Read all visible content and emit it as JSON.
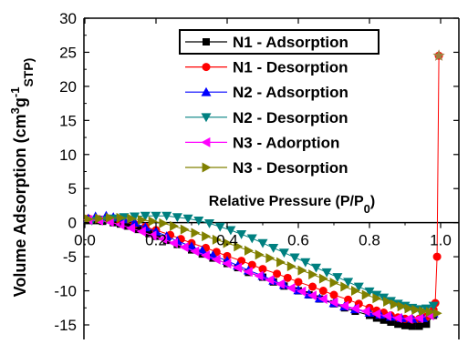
{
  "chart_data": {
    "type": "scatter",
    "xlabel_parts": [
      "Relative Pressure (P/P",
      "0",
      ")"
    ],
    "ylabel_parts": [
      "Volume Adsorption (cm",
      "3",
      "g",
      "-1",
      "STP)"
    ],
    "xlim": [
      0.0,
      1.05
    ],
    "ylim": [
      -17.5,
      30
    ],
    "xticks": [
      0.0,
      0.2,
      0.4,
      0.6,
      0.8,
      1.0
    ],
    "xtick_labels": [
      "0.0",
      "0.2",
      "0.4",
      "0.6",
      "0.8",
      "1.0"
    ],
    "yticks": [
      -15,
      -10,
      -5,
      0,
      5,
      10,
      15,
      20,
      25,
      30
    ],
    "ytick_labels": [
      "-15",
      "-10",
      "-5",
      "0",
      "5",
      "10",
      "15",
      "20",
      "25",
      "30"
    ],
    "legend_position": "top-center",
    "series": [
      {
        "name": "N1 - Adsorption",
        "marker": "square",
        "color": "#000000",
        "x": [
          0.01,
          0.03,
          0.05,
          0.08,
          0.1,
          0.12,
          0.15,
          0.18,
          0.2,
          0.23,
          0.26,
          0.3,
          0.33,
          0.36,
          0.4,
          0.43,
          0.46,
          0.5,
          0.53,
          0.56,
          0.6,
          0.63,
          0.66,
          0.7,
          0.73,
          0.76,
          0.8,
          0.82,
          0.84,
          0.86,
          0.88,
          0.9,
          0.92,
          0.94,
          0.96,
          0.98
        ],
        "y": [
          0.3,
          0.3,
          0.2,
          0.0,
          -0.2,
          -0.5,
          -1.0,
          -1.6,
          -2.0,
          -2.6,
          -3.2,
          -4.0,
          -4.6,
          -5.2,
          -6.0,
          -6.6,
          -7.3,
          -8.0,
          -8.7,
          -9.3,
          -10.0,
          -10.6,
          -11.2,
          -11.9,
          -12.5,
          -13.0,
          -13.6,
          -14.0,
          -14.3,
          -14.6,
          -14.9,
          -15.1,
          -15.2,
          -15.2,
          -14.9,
          -13.6
        ]
      },
      {
        "name": "N1 - Desorption",
        "marker": "circle",
        "color": "#ff0000",
        "x": [
          0.995,
          0.99,
          0.985,
          0.98,
          0.96,
          0.94,
          0.92,
          0.9,
          0.88,
          0.86,
          0.84,
          0.82,
          0.8,
          0.77,
          0.74,
          0.7,
          0.67,
          0.64,
          0.6,
          0.57,
          0.54,
          0.5,
          0.47,
          0.44,
          0.4,
          0.37,
          0.34,
          0.3,
          0.27,
          0.24,
          0.2,
          0.17,
          0.14,
          0.1,
          0.07,
          0.04,
          0.01
        ],
        "y": [
          24.5,
          -5.0,
          -11.8,
          -12.8,
          -13.8,
          -14.1,
          -14.2,
          -14.1,
          -13.9,
          -13.6,
          -13.2,
          -12.9,
          -12.5,
          -11.9,
          -11.3,
          -10.6,
          -10.0,
          -9.4,
          -8.7,
          -8.1,
          -7.5,
          -6.8,
          -6.2,
          -5.6,
          -4.9,
          -4.3,
          -3.7,
          -3.0,
          -2.4,
          -1.8,
          -1.1,
          -0.6,
          -0.2,
          0.2,
          0.4,
          0.5,
          0.6
        ]
      },
      {
        "name": "N2 - Adsorption",
        "marker": "triangle-up",
        "color": "#0000ff",
        "x": [
          0.01,
          0.03,
          0.06,
          0.08,
          0.11,
          0.14,
          0.17,
          0.2,
          0.23,
          0.26,
          0.3,
          0.33,
          0.36,
          0.4,
          0.43,
          0.46,
          0.5,
          0.53,
          0.56,
          0.6,
          0.63,
          0.66,
          0.7,
          0.73,
          0.76,
          0.8,
          0.83,
          0.86,
          0.89,
          0.92,
          0.95,
          0.98
        ],
        "y": [
          0.6,
          0.9,
          1.0,
          0.8,
          0.5,
          0.0,
          -0.7,
          -1.3,
          -2.0,
          -2.7,
          -3.5,
          -4.1,
          -4.8,
          -5.6,
          -6.3,
          -7.0,
          -7.8,
          -8.5,
          -9.1,
          -9.9,
          -10.5,
          -11.1,
          -11.8,
          -12.3,
          -12.7,
          -13.2,
          -13.5,
          -13.8,
          -14.0,
          -14.1,
          -14.0,
          -13.3
        ]
      },
      {
        "name": "N2 - Desorption",
        "marker": "triangle-down",
        "color": "#008080",
        "x": [
          0.98,
          0.96,
          0.94,
          0.92,
          0.9,
          0.88,
          0.86,
          0.84,
          0.82,
          0.8,
          0.77,
          0.74,
          0.71,
          0.68,
          0.65,
          0.62,
          0.59,
          0.56,
          0.53,
          0.5,
          0.47,
          0.44,
          0.41,
          0.38,
          0.35,
          0.32,
          0.29,
          0.26,
          0.23,
          0.2,
          0.17,
          0.14,
          0.11,
          0.08,
          0.05,
          0.02
        ],
        "y": [
          -12.2,
          -12.6,
          -12.7,
          -12.5,
          -12.2,
          -11.9,
          -11.5,
          -11.0,
          -10.6,
          -10.1,
          -9.4,
          -8.7,
          -8.0,
          -7.3,
          -6.6,
          -5.8,
          -5.1,
          -4.4,
          -3.7,
          -3.0,
          -2.3,
          -1.7,
          -1.1,
          -0.6,
          -0.1,
          0.3,
          0.6,
          0.8,
          1.0,
          1.0,
          1.0,
          0.9,
          0.8,
          0.6,
          0.4,
          0.3
        ]
      },
      {
        "name": "N3 - Adorption",
        "marker": "triangle-left",
        "color": "#ff00ff",
        "x": [
          0.01,
          0.04,
          0.07,
          0.1,
          0.13,
          0.16,
          0.19,
          0.22,
          0.25,
          0.28,
          0.31,
          0.34,
          0.37,
          0.4,
          0.43,
          0.46,
          0.49,
          0.52,
          0.55,
          0.58,
          0.61,
          0.64,
          0.67,
          0.7,
          0.73,
          0.76,
          0.79,
          0.82,
          0.85,
          0.88,
          0.91,
          0.94,
          0.97
        ],
        "y": [
          0.4,
          0.3,
          0.1,
          -0.3,
          -0.8,
          -1.3,
          -1.9,
          -2.4,
          -3.0,
          -3.6,
          -4.2,
          -4.8,
          -5.4,
          -6.0,
          -6.6,
          -7.2,
          -7.8,
          -8.4,
          -9.0,
          -9.6,
          -10.1,
          -10.7,
          -11.2,
          -11.7,
          -12.2,
          -12.6,
          -13.0,
          -13.4,
          -13.7,
          -14.0,
          -14.1,
          -14.0,
          -13.6
        ]
      },
      {
        "name": "N3 - Desorption",
        "marker": "triangle-right",
        "color": "#808000",
        "x": [
          0.99,
          0.97,
          0.95,
          0.93,
          0.91,
          0.89,
          0.87,
          0.85,
          0.82,
          0.79,
          0.76,
          0.73,
          0.7,
          0.67,
          0.64,
          0.61,
          0.58,
          0.55,
          0.52,
          0.49,
          0.46,
          0.43,
          0.4,
          0.37,
          0.34,
          0.31,
          0.28,
          0.25,
          0.22,
          0.19,
          0.16,
          0.13,
          0.1,
          0.07,
          0.04,
          0.01
        ],
        "y": [
          -13.3,
          -13.1,
          -13.0,
          -12.8,
          -12.6,
          -12.3,
          -12.0,
          -11.6,
          -11.1,
          -10.6,
          -10.0,
          -9.4,
          -8.8,
          -8.2,
          -7.6,
          -7.0,
          -6.4,
          -5.8,
          -5.2,
          -4.7,
          -4.1,
          -3.5,
          -3.0,
          -2.5,
          -2.0,
          -1.5,
          -1.0,
          -0.5,
          -0.1,
          0.2,
          0.4,
          0.6,
          0.7,
          0.7,
          0.6,
          0.5
        ]
      }
    ]
  }
}
